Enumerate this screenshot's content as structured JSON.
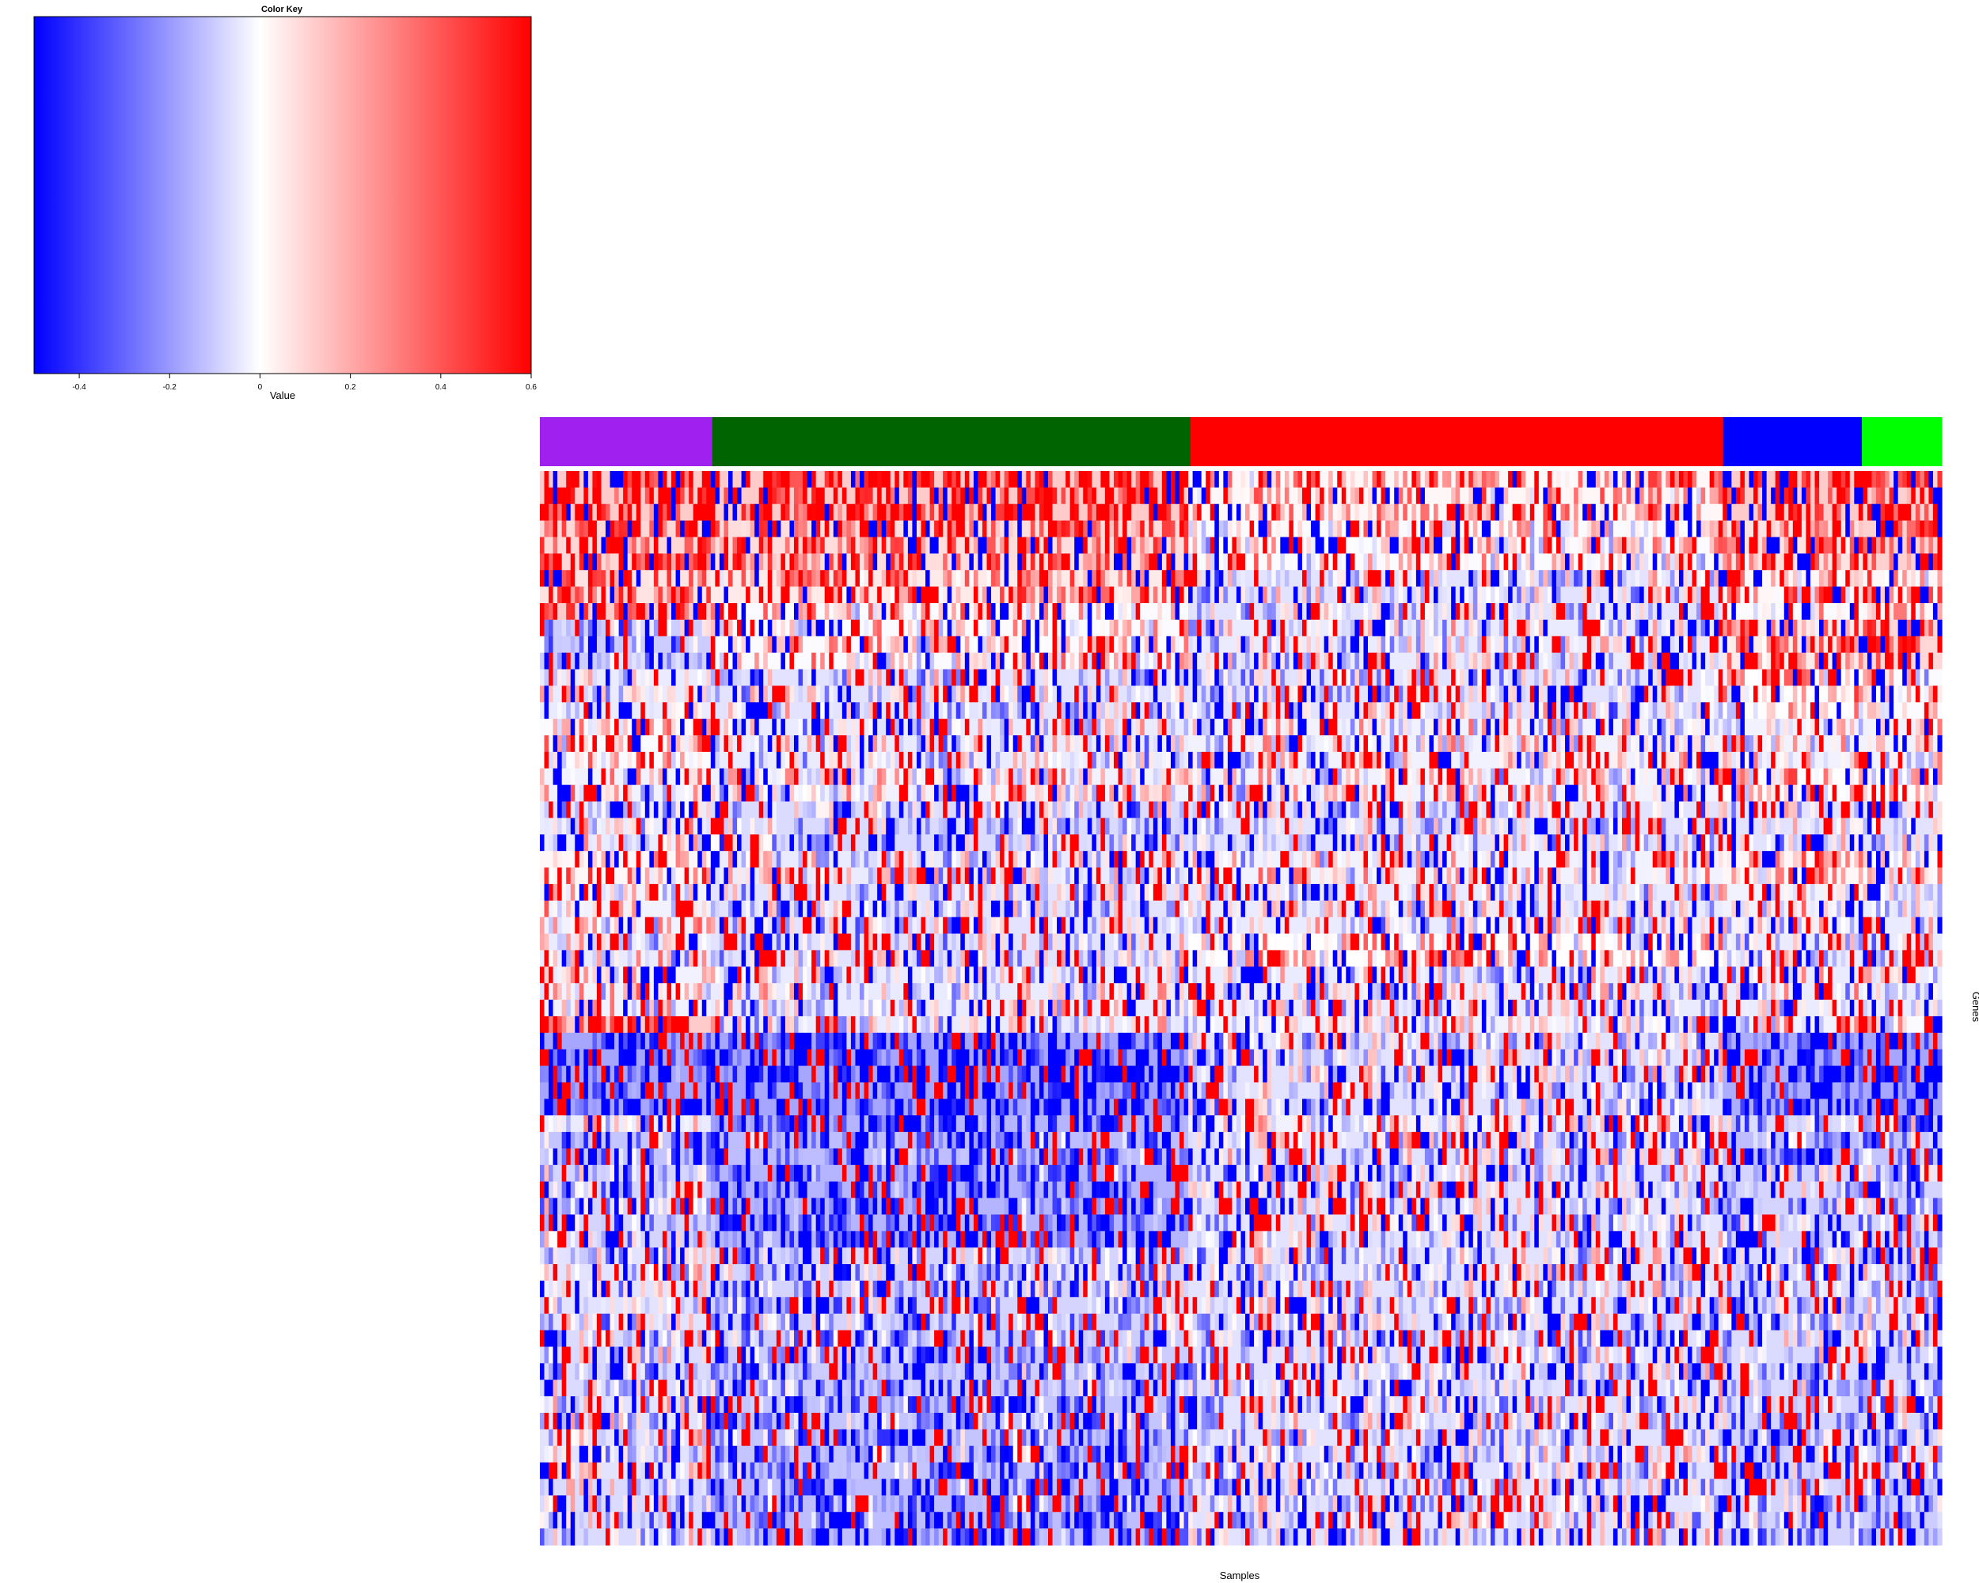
{
  "chart_data": {
    "type": "heatmap",
    "title": "",
    "xlabel": "Samples",
    "ylabel": "Genes",
    "color_key": {
      "title": "Color Key",
      "xlabel": "Value",
      "range": [
        -0.5,
        0.6
      ],
      "colors": {
        "low": "#0000ff",
        "mid": "#ffffff",
        "high": "#ff0000"
      },
      "ticks": [
        -0.4,
        -0.2,
        0,
        0.2,
        0.4,
        0.6
      ],
      "tick_labels": [
        "-0.4",
        "-0.2",
        "0",
        "0.2",
        "0.4",
        "0.6"
      ]
    },
    "column_groups": [
      {
        "color": "#a020f0",
        "fraction": 0.123
      },
      {
        "color": "#006400",
        "fraction": 0.341
      },
      {
        "color": "#ff0000",
        "fraction": 0.38
      },
      {
        "color": "#0000ff",
        "fraction": 0.099
      },
      {
        "color": "#00ff00",
        "fraction": 0.057
      }
    ],
    "row_blocks": [
      {
        "rows": 3,
        "means": [
          0.55,
          0.55,
          0.2,
          0.55,
          0.5
        ]
      },
      {
        "rows": 3,
        "means": [
          0.45,
          0.4,
          0.1,
          0.35,
          0.5
        ]
      },
      {
        "rows": 2,
        "means": [
          0.35,
          0.3,
          -0.05,
          0.2,
          0.2
        ]
      },
      {
        "rows": 1,
        "means": [
          0.55,
          0.1,
          -0.05,
          0.1,
          0.2
        ]
      },
      {
        "rows": 3,
        "means": [
          -0.2,
          0.1,
          0.0,
          0.3,
          0.45
        ]
      },
      {
        "rows": 3,
        "means": [
          0.0,
          -0.05,
          -0.05,
          0.15,
          0.1
        ]
      },
      {
        "rows": 3,
        "means": [
          0.1,
          0.0,
          0.05,
          0.05,
          0.05
        ]
      },
      {
        "rows": 2,
        "means": [
          0.05,
          0.05,
          0.05,
          0.15,
          0.15
        ]
      },
      {
        "rows": 3,
        "means": [
          0.0,
          -0.1,
          -0.05,
          -0.05,
          -0.05
        ]
      },
      {
        "rows": 2,
        "means": [
          0.2,
          0.0,
          0.05,
          0.2,
          0.1
        ]
      },
      {
        "rows": 3,
        "means": [
          0.05,
          -0.05,
          0.0,
          0.05,
          0.0
        ]
      },
      {
        "rows": 2,
        "means": [
          0.0,
          -0.05,
          0.15,
          0.0,
          0.0
        ]
      },
      {
        "rows": 3,
        "means": [
          0.05,
          0.0,
          0.0,
          0.0,
          0.0
        ]
      },
      {
        "rows": 1,
        "means": [
          0.55,
          0.0,
          0.05,
          0.05,
          0.1
        ]
      },
      {
        "rows": 5,
        "means": [
          -0.45,
          -0.45,
          -0.05,
          -0.4,
          -0.45
        ]
      },
      {
        "rows": 1,
        "means": [
          0.0,
          -0.35,
          0.05,
          -0.1,
          -0.1
        ]
      },
      {
        "rows": 2,
        "means": [
          -0.25,
          -0.3,
          -0.05,
          -0.3,
          -0.25
        ]
      },
      {
        "rows": 5,
        "means": [
          -0.15,
          -0.35,
          -0.05,
          -0.15,
          -0.15
        ]
      },
      {
        "rows": 5,
        "means": [
          -0.05,
          -0.15,
          -0.05,
          -0.1,
          -0.05
        ]
      },
      {
        "rows": 4,
        "means": [
          -0.1,
          -0.2,
          -0.05,
          -0.1,
          -0.1
        ]
      },
      {
        "rows": 5,
        "means": [
          -0.05,
          -0.25,
          -0.05,
          -0.15,
          -0.1
        ]
      },
      {
        "rows": 4,
        "means": [
          -0.1,
          -0.3,
          -0.05,
          -0.15,
          -0.2
        ]
      }
    ],
    "n_columns": 320,
    "legend": false,
    "grid": false
  }
}
